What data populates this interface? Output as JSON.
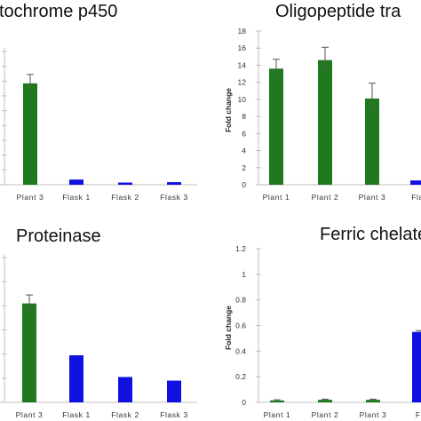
{
  "colors": {
    "plant": "#1f7a1f",
    "flask": "#1010e0",
    "axis": "#bfbfbf",
    "error": "#555555"
  },
  "chart_data": [
    {
      "type": "bar",
      "title": "tochrome p450",
      "ylabel": "",
      "categories": [
        "Plant 3",
        "Flask 1",
        "Flask 2",
        "Flask 3"
      ],
      "values": [
        13.7,
        0.7,
        0.3,
        0.35
      ],
      "errors": [
        1.2,
        0.0,
        0.0,
        0.0
      ],
      "bar_colors": [
        "plant",
        "flask",
        "flask",
        "flask"
      ],
      "ylim": [
        0,
        18
      ],
      "yticks": [],
      "grid": false
    },
    {
      "type": "bar",
      "title": "Oligopeptide tra",
      "ylabel": "Fold change",
      "categories": [
        "Plant 1",
        "Plant 2",
        "Plant 3",
        "Fla"
      ],
      "values": [
        13.6,
        14.6,
        10.1,
        0.5
      ],
      "errors": [
        1.1,
        1.5,
        1.8,
        0.0
      ],
      "bar_colors": [
        "plant",
        "plant",
        "plant",
        "flask"
      ],
      "ylim": [
        0,
        18
      ],
      "yticks": [
        "0",
        "2",
        "4",
        "6",
        "8",
        "10",
        "12",
        "14",
        "16",
        "18"
      ],
      "grid": false
    },
    {
      "type": "bar",
      "title": "Proteinase",
      "ylabel": "",
      "categories": [
        "Plant 3",
        "Flask 1",
        "Flask 2",
        "Flask 3"
      ],
      "values": [
        0.82,
        0.39,
        0.21,
        0.18
      ],
      "errors": [
        0.07,
        0.0,
        0.0,
        0.0
      ],
      "bar_colors": [
        "plant",
        "flask",
        "flask",
        "flask"
      ],
      "ylim": [
        0,
        1.2
      ],
      "yticks": [],
      "grid": false
    },
    {
      "type": "bar",
      "title": "Ferric chelate r",
      "ylabel": "Fold change",
      "categories": [
        "Plant 1",
        "Plant 2",
        "Plant 3",
        "Fl"
      ],
      "values": [
        0.015,
        0.02,
        0.02,
        0.55
      ],
      "errors": [
        0.005,
        0.005,
        0.005,
        0.01
      ],
      "bar_colors": [
        "plant",
        "plant",
        "plant",
        "flask"
      ],
      "ylim": [
        0,
        1.2
      ],
      "yticks": [
        "0",
        "0.2",
        "0.4",
        "0.6",
        "0.8",
        "1",
        "1.2"
      ],
      "grid": false
    }
  ]
}
